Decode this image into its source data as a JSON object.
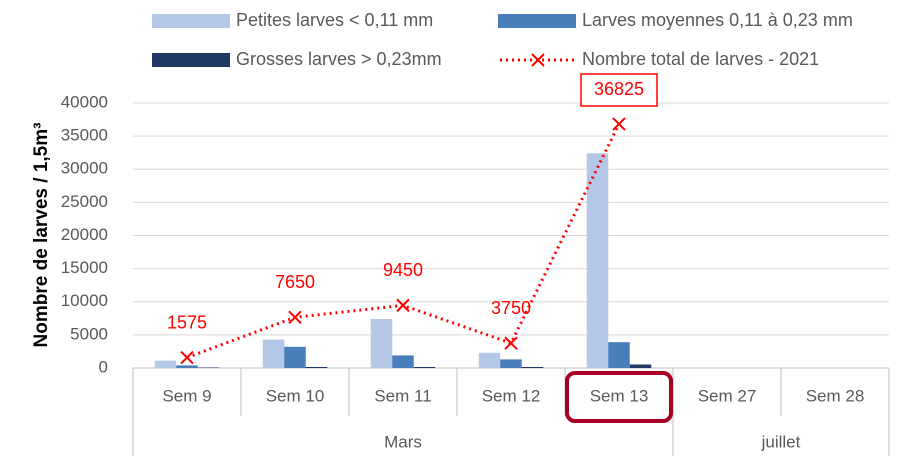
{
  "chart_data": {
    "type": "bar",
    "ylabel": "Nombre de larves / 1,5m³",
    "categories": [
      "Sem 9",
      "Sem 10",
      "Sem 11",
      "Sem 12",
      "Sem 13",
      "Sem 27",
      "Sem 28"
    ],
    "groups": [
      {
        "label": "Mars",
        "span": 5
      },
      {
        "label": "juillet",
        "span": 2
      }
    ],
    "series": [
      {
        "name": "Petites larves < 0,11 mm",
        "color": "#b4c7e7",
        "values": [
          1100,
          4300,
          7400,
          2300,
          32400,
          null,
          null
        ]
      },
      {
        "name": "Larves moyennes 0,11 à 0,23 mm",
        "color": "#4a7ebb",
        "values": [
          400,
          3200,
          1900,
          1300,
          3900,
          null,
          null
        ]
      },
      {
        "name": "Grosses larves > 0,23mm",
        "color": "#203864",
        "values": [
          75,
          150,
          150,
          150,
          525,
          null,
          null
        ]
      },
      {
        "name": "Nombre total de larves - 2021",
        "color": "#ff0000",
        "type": "line",
        "values": [
          1575,
          7650,
          9450,
          3750,
          36825,
          null,
          null
        ]
      }
    ],
    "highlight": 4,
    "ylim": [
      0,
      40000
    ],
    "yticks": [
      0,
      5000,
      10000,
      15000,
      20000,
      25000,
      30000,
      35000,
      40000
    ],
    "grid": true
  }
}
